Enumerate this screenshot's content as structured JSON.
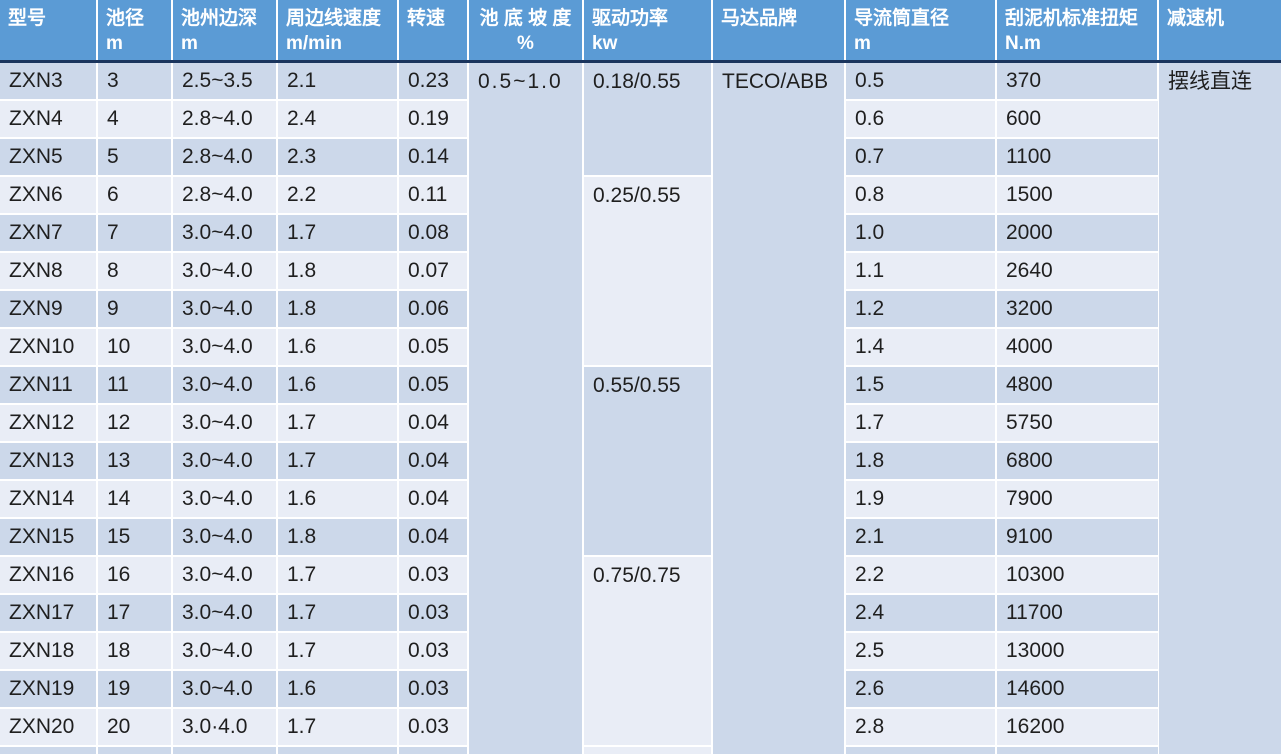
{
  "table": {
    "columns": [
      {
        "key": "model",
        "label": "型号",
        "unit": ""
      },
      {
        "key": "diameter",
        "label": "池径",
        "unit": "m"
      },
      {
        "key": "edge_depth",
        "label": "池州边深",
        "unit": "m"
      },
      {
        "key": "line_speed",
        "label": "周边线速度",
        "unit": "m/min"
      },
      {
        "key": "rpm",
        "label": "转速",
        "unit": ""
      },
      {
        "key": "slope",
        "label": "池 底 坡 度",
        "unit": "%",
        "align": "center"
      },
      {
        "key": "power",
        "label": "驱动功率",
        "unit": "kw"
      },
      {
        "key": "motor",
        "label": "马达品牌",
        "unit": ""
      },
      {
        "key": "draft_tube",
        "label": "导流筒直径",
        "unit": "m"
      },
      {
        "key": "torque",
        "label": "刮泥机标准扭矩",
        "unit": "N.m"
      },
      {
        "key": "reducer",
        "label": "减速机",
        "unit": ""
      }
    ],
    "rows": [
      {
        "model": "ZXN3",
        "diameter": "3",
        "edge_depth": "2.5~3.5",
        "line_speed": "2.1",
        "rpm": "0.23",
        "draft_tube": "0.5",
        "torque": "370"
      },
      {
        "model": "ZXN4",
        "diameter": "4",
        "edge_depth": "2.8~4.0",
        "line_speed": "2.4",
        "rpm": "0.19",
        "draft_tube": "0.6",
        "torque": "600"
      },
      {
        "model": "ZXN5",
        "diameter": "5",
        "edge_depth": "2.8~4.0",
        "line_speed": "2.3",
        "rpm": "0.14",
        "draft_tube": "0.7",
        "torque": "1100"
      },
      {
        "model": "ZXN6",
        "diameter": "6",
        "edge_depth": "2.8~4.0",
        "line_speed": "2.2",
        "rpm": "0.11",
        "draft_tube": "0.8",
        "torque": "1500"
      },
      {
        "model": "ZXN7",
        "diameter": "7",
        "edge_depth": "3.0~4.0",
        "line_speed": "1.7",
        "rpm": "0.08",
        "draft_tube": "1.0",
        "torque": "2000"
      },
      {
        "model": "ZXN8",
        "diameter": "8",
        "edge_depth": "3.0~4.0",
        "line_speed": "1.8",
        "rpm": "0.07",
        "draft_tube": "1.1",
        "torque": "2640"
      },
      {
        "model": "ZXN9",
        "diameter": "9",
        "edge_depth": "3.0~4.0",
        "line_speed": "1.8",
        "rpm": "0.06",
        "draft_tube": "1.2",
        "torque": "3200"
      },
      {
        "model": "ZXN10",
        "diameter": "10",
        "edge_depth": "3.0~4.0",
        "line_speed": "1.6",
        "rpm": "0.05",
        "draft_tube": "1.4",
        "torque": "4000"
      },
      {
        "model": "ZXN11",
        "diameter": "11",
        "edge_depth": "3.0~4.0",
        "line_speed": "1.6",
        "rpm": "0.05",
        "draft_tube": "1.5",
        "torque": "4800"
      },
      {
        "model": "ZXN12",
        "diameter": "12",
        "edge_depth": "3.0~4.0",
        "line_speed": "1.7",
        "rpm": "0.04",
        "draft_tube": "1.7",
        "torque": "5750"
      },
      {
        "model": "ZXN13",
        "diameter": "13",
        "edge_depth": "3.0~4.0",
        "line_speed": "1.7",
        "rpm": "0.04",
        "draft_tube": "1.8",
        "torque": "6800"
      },
      {
        "model": "ZXN14",
        "diameter": "14",
        "edge_depth": "3.0~4.0",
        "line_speed": "1.6",
        "rpm": "0.04",
        "draft_tube": "1.9",
        "torque": "7900"
      },
      {
        "model": "ZXN15",
        "diameter": "15",
        "edge_depth": "3.0~4.0",
        "line_speed": "1.8",
        "rpm": "0.04",
        "draft_tube": "2.1",
        "torque": "9100"
      },
      {
        "model": "ZXN16",
        "diameter": "16",
        "edge_depth": "3.0~4.0",
        "line_speed": "1.7",
        "rpm": "0.03",
        "draft_tube": "2.2",
        "torque": "10300"
      },
      {
        "model": "ZXN17",
        "diameter": "17",
        "edge_depth": "3.0~4.0",
        "line_speed": "1.7",
        "rpm": "0.03",
        "draft_tube": "2.4",
        "torque": "11700"
      },
      {
        "model": "ZXN18",
        "diameter": "18",
        "edge_depth": "3.0~4.0",
        "line_speed": "1.7",
        "rpm": "0.03",
        "draft_tube": "2.5",
        "torque": "13000"
      },
      {
        "model": "ZXN19",
        "diameter": "19",
        "edge_depth": "3.0~4.0",
        "line_speed": "1.6",
        "rpm": "0.03",
        "draft_tube": "2.6",
        "torque": "14600"
      },
      {
        "model": "ZXN20",
        "diameter": "20",
        "edge_depth": "3.0·4.0",
        "line_speed": "1.7",
        "rpm": "0.03",
        "draft_tube": "2.8",
        "torque": "16200"
      }
    ],
    "merged_cells": {
      "slope": "0.5~1.0",
      "motor": "TECO/ABB",
      "reducer": "摆线直连",
      "power_groups": [
        {
          "value": "0.18/0.55",
          "start": 0,
          "span": 3
        },
        {
          "value": "0.25/0.55",
          "start": 3,
          "span": 5
        },
        {
          "value": "0.55/0.55",
          "start": 8,
          "span": 5
        },
        {
          "value": "0.75/0.75",
          "start": 13,
          "span": 5
        }
      ]
    },
    "colors": {
      "header_bg": "#5b9bd5",
      "header_text": "#ffffff",
      "header_divider": "#1a355e",
      "band_dark": "#ccd8ea",
      "band_light": "#e9edf6",
      "gridline": "#ffffff",
      "body_text": "#1f1f1f"
    }
  }
}
